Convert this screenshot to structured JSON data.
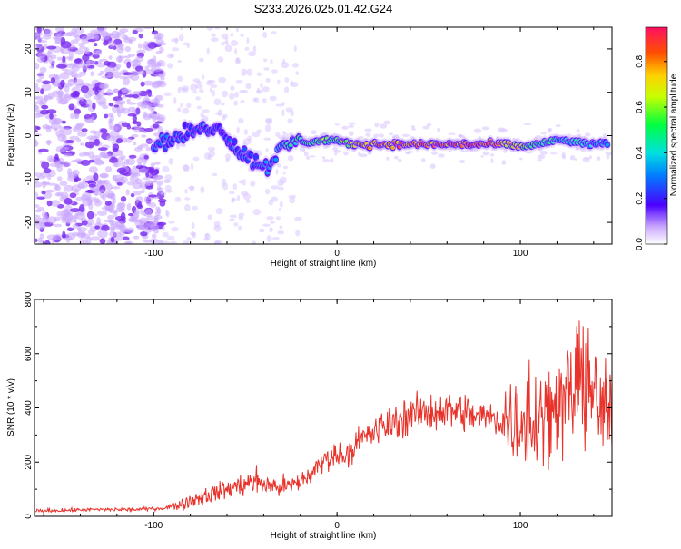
{
  "chart_data": [
    {
      "type": "heatmap",
      "title": "S233.2026.025.01.42.G24",
      "xlabel": "Height of straight line (km)",
      "ylabel": "Frequency (Hz)",
      "xlim": [
        -165,
        150
      ],
      "ylim": [
        -25,
        25
      ],
      "x_ticks": [
        -100,
        0,
        100
      ],
      "y_ticks": [
        -20,
        -10,
        0,
        10,
        20
      ],
      "ridge": {
        "x": [
          -100,
          -90,
          -80,
          -70,
          -62,
          -55,
          -45,
          -38,
          -30,
          -22,
          -15,
          -5,
          0,
          10,
          20,
          40,
          60,
          80,
          90,
          100,
          110,
          120,
          130,
          140,
          148
        ],
        "freq": [
          -2,
          -1,
          1,
          2,
          1,
          -3,
          -6,
          -7,
          -3,
          -1,
          -1.5,
          -1,
          -1.5,
          -2,
          -2,
          -2,
          -2,
          -2,
          -2,
          -2.5,
          -2,
          -1,
          -1.5,
          -2,
          -2
        ],
        "amplitude": [
          0.35,
          0.3,
          0.25,
          0.3,
          0.25,
          0.3,
          0.3,
          0.35,
          0.45,
          0.5,
          0.55,
          0.6,
          0.65,
          0.75,
          0.85,
          0.85,
          0.85,
          0.9,
          0.8,
          0.7,
          0.5,
          0.45,
          0.45,
          0.4,
          0.35
        ]
      },
      "colorbar": {
        "label": "Normalized spectral amplitude",
        "range": [
          0,
          0.95
        ],
        "ticks": [
          "0.0",
          "0.2",
          "0.4",
          "0.6",
          "0.8"
        ]
      }
    },
    {
      "type": "line",
      "xlabel": "Height of straight line (km)",
      "ylabel": "SNR (10 * v/v)",
      "xlim": [
        -165,
        150
      ],
      "ylim": [
        0,
        800
      ],
      "x_ticks": [
        -100,
        0,
        100
      ],
      "y_ticks": [
        0,
        200,
        400,
        600,
        800
      ],
      "series": [
        {
          "name": "SNR",
          "color": "#e8322a",
          "x": [
            -165,
            -150,
            -130,
            -110,
            -95,
            -85,
            -75,
            -65,
            -55,
            -45,
            -35,
            -25,
            -15,
            -5,
            5,
            15,
            25,
            35,
            45,
            55,
            65,
            75,
            85,
            95,
            105,
            115,
            125,
            135,
            145,
            150
          ],
          "y": [
            20,
            22,
            25,
            25,
            30,
            45,
            70,
            90,
            110,
            130,
            110,
            110,
            150,
            220,
            230,
            290,
            330,
            360,
            380,
            390,
            390,
            370,
            360,
            350,
            360,
            400,
            430,
            500,
            380,
            380
          ]
        }
      ]
    }
  ]
}
